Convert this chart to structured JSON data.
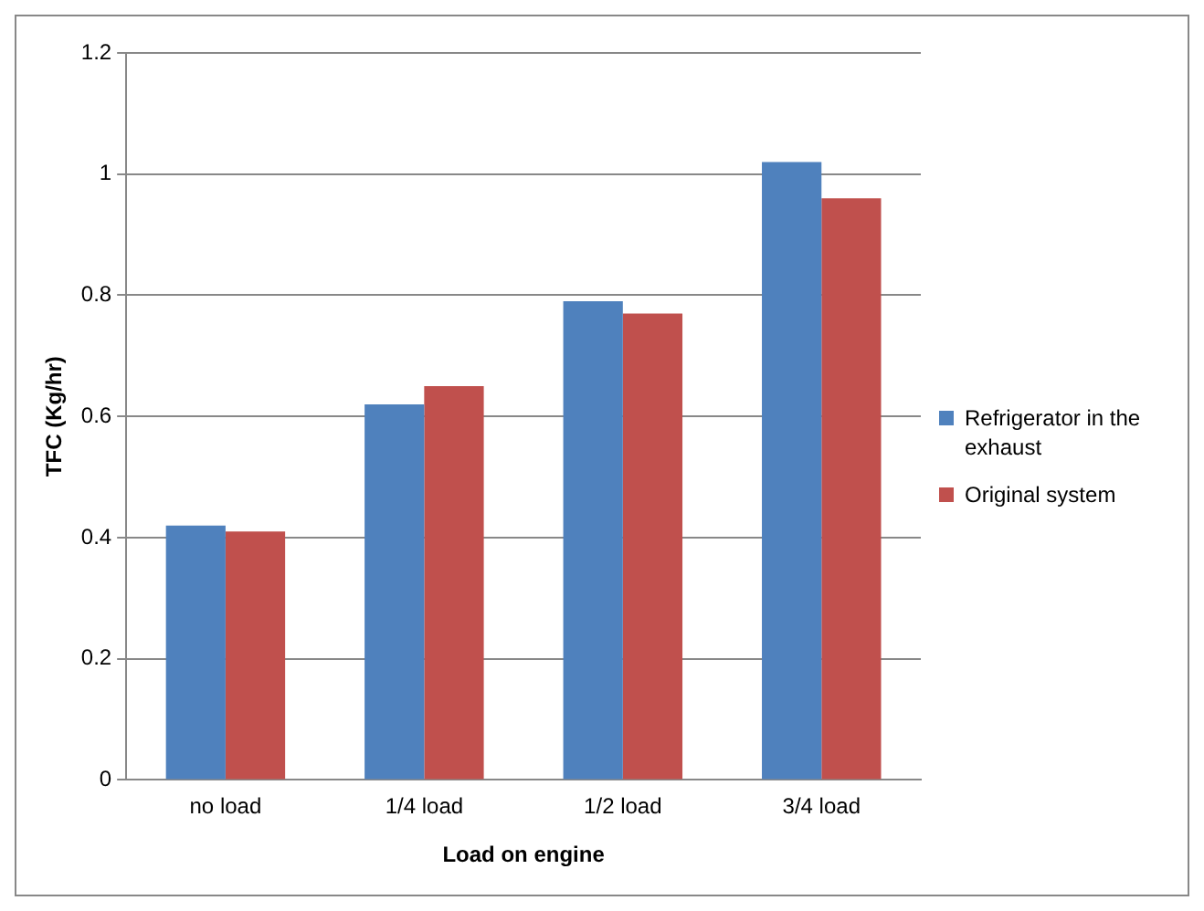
{
  "chart_data": {
    "type": "bar",
    "xlabel": "Load on engine",
    "ylabel": "TFC (Kg/hr)",
    "categories": [
      "no load",
      "1/4 load",
      "1/2 load",
      "3/4 load"
    ],
    "series": [
      {
        "name": "Refrigerator in the exhaust",
        "color": "#4f81bd",
        "values": [
          0.42,
          0.62,
          0.79,
          1.02
        ]
      },
      {
        "name": "Original system",
        "color": "#c0504d",
        "values": [
          0.41,
          0.65,
          0.77,
          0.96
        ]
      }
    ],
    "ylim": [
      0,
      1.2
    ],
    "yticks": [
      0,
      0.2,
      0.4,
      0.6,
      0.8,
      1,
      1.2
    ],
    "grid": "y",
    "legend": "right"
  }
}
